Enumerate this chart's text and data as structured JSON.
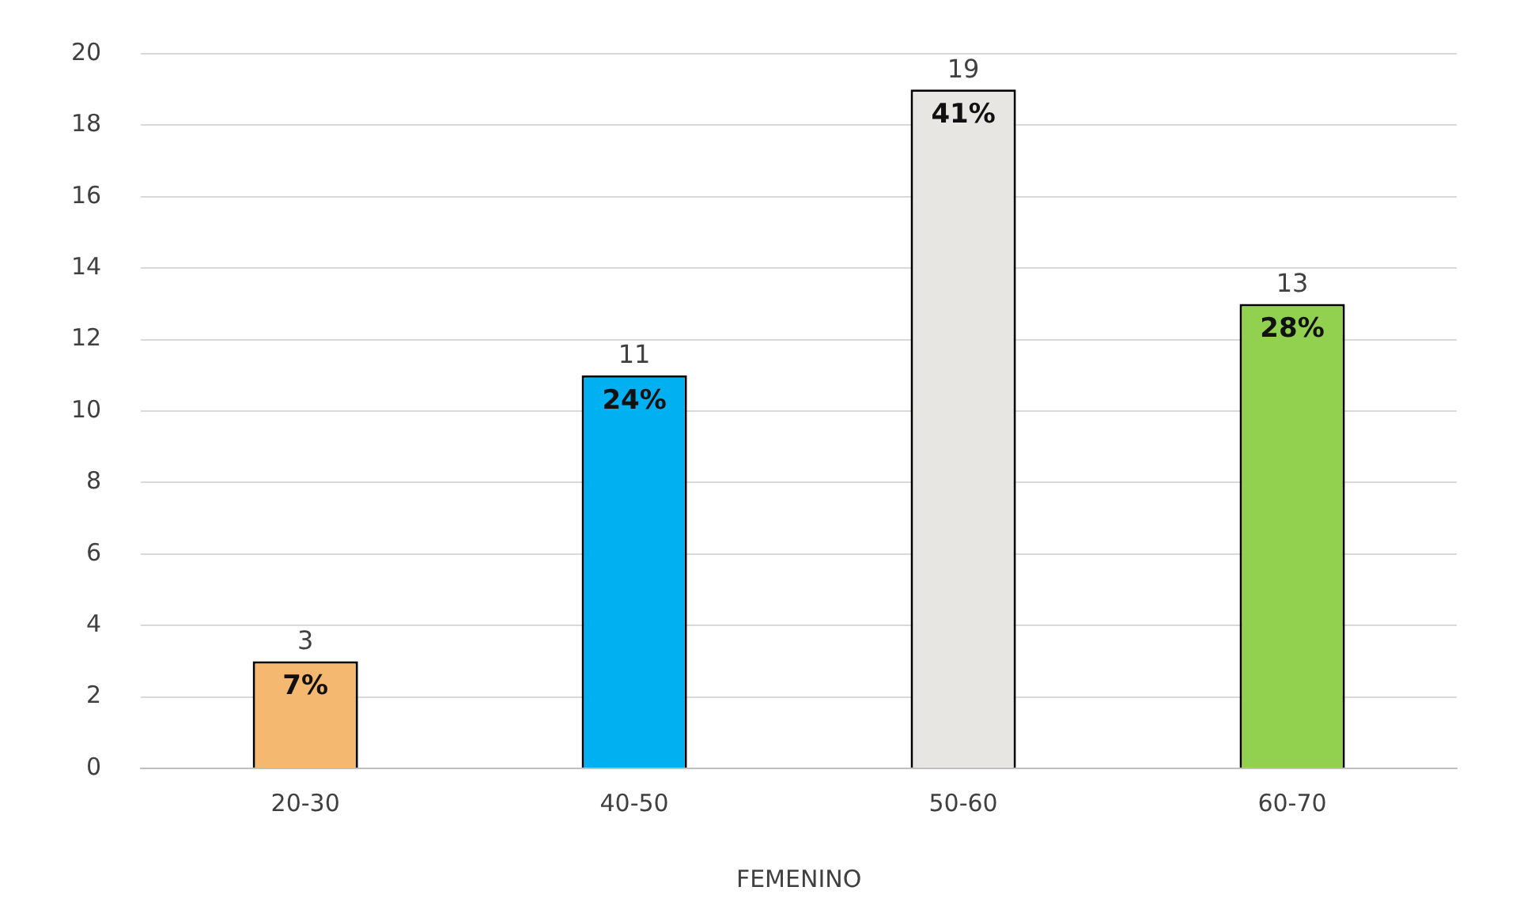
{
  "chart_data": {
    "type": "bar",
    "xlabel": "FEMENINO",
    "categories": [
      "20-30",
      "40-50",
      "50-60",
      "60-70"
    ],
    "values": [
      3,
      11,
      19,
      13
    ],
    "colors": [
      "#f4b870",
      "#00b0f0",
      "#e7e6e2",
      "#92d050"
    ],
    "value_labels": [
      "3",
      "11",
      "19",
      "13"
    ],
    "annotations": [
      {
        "text": "7%",
        "x": "20-30",
        "y": 3
      },
      {
        "text": "24%",
        "x": "40-50",
        "y": 11
      },
      {
        "text": "41%",
        "x": "50-60",
        "y": 19
      },
      {
        "text": "28%",
        "x": "60-70",
        "y": 13
      }
    ],
    "ylim": [
      0,
      20
    ],
    "yticks": [
      0,
      2,
      4,
      6,
      8,
      10,
      12,
      14,
      16,
      18,
      20
    ],
    "grid": "y",
    "legend": false
  }
}
